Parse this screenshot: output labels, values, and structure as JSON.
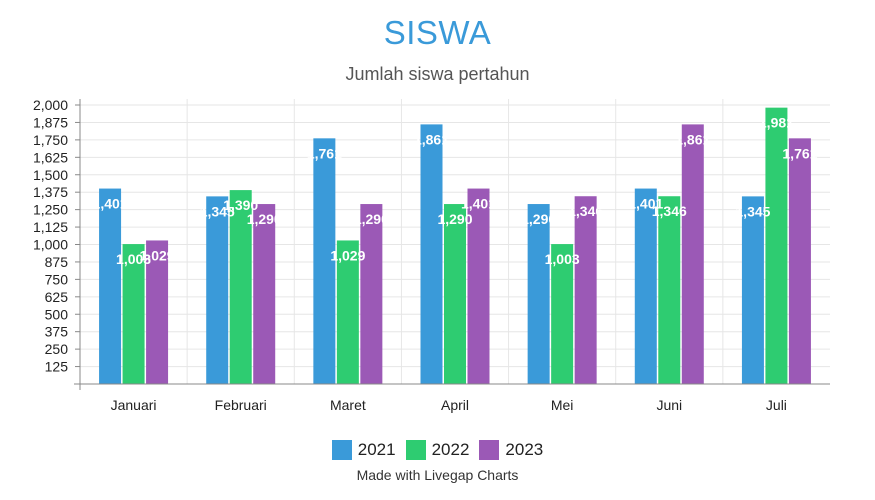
{
  "chart_data": {
    "type": "bar",
    "title": "SISWA",
    "subtitle": "Jumlah siswa pertahun",
    "categories": [
      "Januari",
      "Februari",
      "Maret",
      "April",
      "Mei",
      "Juni",
      "Juli"
    ],
    "series": [
      {
        "name": "2021",
        "color": "#3a9ad9",
        "values": [
          1401,
          1345,
          1761,
          1861,
          1290,
          1401,
          1345
        ]
      },
      {
        "name": "2022",
        "color": "#2ecc71",
        "values": [
          1003,
          1390,
          1029,
          1290,
          1003,
          1346,
          1981
        ]
      },
      {
        "name": "2023",
        "color": "#9b59b6",
        "values": [
          1029,
          1290,
          1290,
          1401,
          1346,
          1861,
          1761
        ]
      }
    ],
    "yticks": [
      "125",
      "250",
      "375",
      "500",
      "625",
      "750",
      "875",
      "1,000",
      "1,125",
      "1,250",
      "1,375",
      "1,500",
      "1,625",
      "1,750",
      "1,875",
      "2,000"
    ],
    "ylim": [
      0,
      2000
    ],
    "grid": true,
    "legend_position": "bottom-center"
  },
  "footer": {
    "credit": "Made with Livegap Charts"
  }
}
